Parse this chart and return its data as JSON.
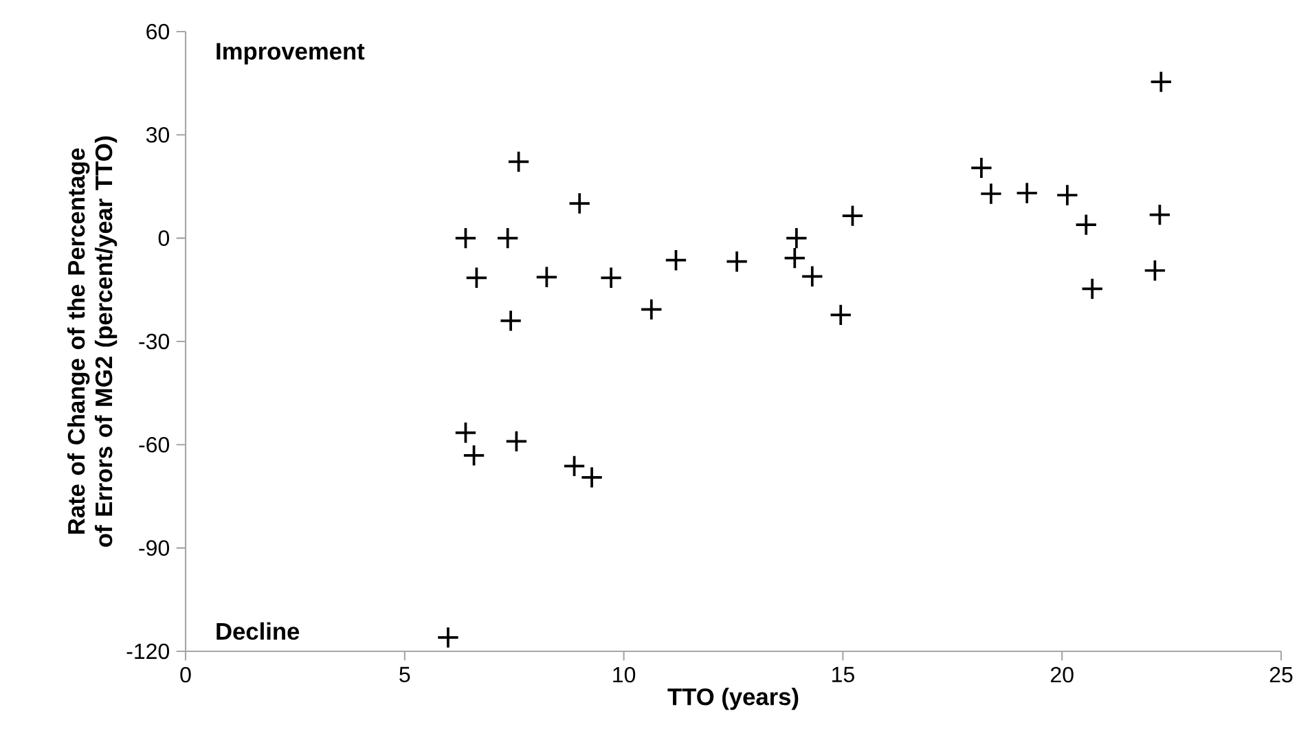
{
  "chart_data": {
    "type": "scatter",
    "xlabel": "TTO (years)",
    "ylabel": "Rate of Change of the Percentage of Errors of MG2 (percent/year TTO)",
    "annotations": [
      "Improvement",
      "Decline"
    ],
    "x": [
      7.6,
      8.99,
      6.39,
      7.35,
      6.64,
      8.24,
      9.71,
      11.19,
      12.58,
      10.63,
      7.42,
      6.39,
      6.58,
      7.55,
      8.87,
      9.27,
      5.99,
      13.94,
      13.9,
      14.3,
      15.22,
      14.95,
      18.16,
      18.38,
      19.2,
      20.12,
      20.55,
      20.69,
      22.26,
      22.23,
      22.12
    ],
    "values": [
      22.2,
      10.1,
      0,
      0,
      -11.5,
      -11.3,
      -11.5,
      -6.4,
      -6.8,
      -20.7,
      -24,
      -56.5,
      -63.1,
      -59,
      -66.2,
      -69.5,
      -116,
      0,
      -5.8,
      -11.1,
      6.5,
      -22.3,
      20.4,
      12.9,
      13.1,
      12.5,
      3.9,
      -14.7,
      45.4,
      6.8,
      -9.4
    ],
    "color": "#000000",
    "marker": "cross",
    "xlim": [
      0,
      25
    ],
    "ylim": [
      -120,
      60
    ],
    "xticks": [
      0,
      5,
      10,
      15,
      20,
      25
    ],
    "yticks": [
      -120,
      -90,
      -60,
      -30,
      0,
      30,
      60
    ],
    "grid": false
  }
}
